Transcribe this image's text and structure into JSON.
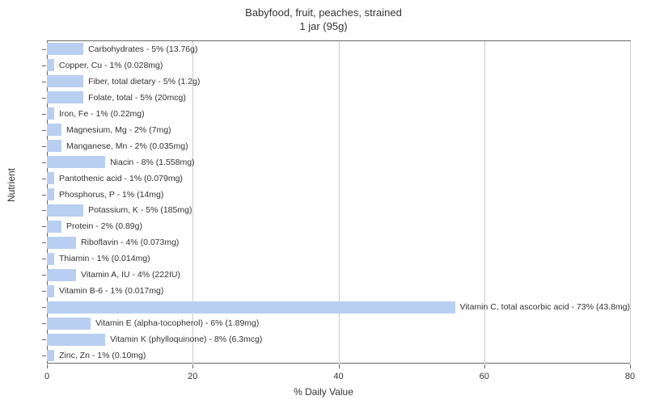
{
  "chart": {
    "type": "bar-horizontal",
    "title_line1": "Babyfood, fruit, peaches, strained",
    "title_line2": "1 jar (95g)",
    "title_fontsize": 13,
    "x_axis_title": "% Daily Value",
    "y_axis_title": "Nutrient",
    "axis_fontsize": 12,
    "label_fontsize": 10.5,
    "xlim_min": 0,
    "xlim_max": 80,
    "xtick_step": 20,
    "xticks": [
      0,
      20,
      40,
      60,
      80
    ],
    "background_color": "#ffffff",
    "bar_color": "#b8cff2",
    "grid_color": "#cccccc",
    "axis_color": "#666666",
    "text_color": "#333333",
    "bar_gap_ratio": 0.25,
    "nutrients": [
      {
        "label": "Carbohydrates - 5% (13.76g)",
        "value": 5
      },
      {
        "label": "Copper, Cu - 1% (0.028mg)",
        "value": 1
      },
      {
        "label": "Fiber, total dietary - 5% (1.2g)",
        "value": 5
      },
      {
        "label": "Folate, total - 5% (20mcg)",
        "value": 5
      },
      {
        "label": "Iron, Fe - 1% (0.22mg)",
        "value": 1
      },
      {
        "label": "Magnesium, Mg - 2% (7mg)",
        "value": 2
      },
      {
        "label": "Manganese, Mn - 2% (0.035mg)",
        "value": 2
      },
      {
        "label": "Niacin - 8% (1.558mg)",
        "value": 8
      },
      {
        "label": "Pantothenic acid - 1% (0.079mg)",
        "value": 1
      },
      {
        "label": "Phosphorus, P - 1% (14mg)",
        "value": 1
      },
      {
        "label": "Potassium, K - 5% (185mg)",
        "value": 5
      },
      {
        "label": "Protein - 2% (0.89g)",
        "value": 2
      },
      {
        "label": "Riboflavin - 4% (0.073mg)",
        "value": 4
      },
      {
        "label": "Thiamin - 1% (0.014mg)",
        "value": 1
      },
      {
        "label": "Vitamin A, IU - 4% (222IU)",
        "value": 4
      },
      {
        "label": "Vitamin B-6 - 1% (0.017mg)",
        "value": 1
      },
      {
        "label": "Vitamin C, total ascorbic acid - 73% (43.8mg)",
        "value": 73
      },
      {
        "label": "Vitamin E (alpha-tocopherol) - 6% (1.89mg)",
        "value": 6
      },
      {
        "label": "Vitamin K (phylloquinone) - 8% (6.3mcg)",
        "value": 8
      },
      {
        "label": "Zinc, Zn - 1% (0.10mg)",
        "value": 1
      }
    ]
  }
}
